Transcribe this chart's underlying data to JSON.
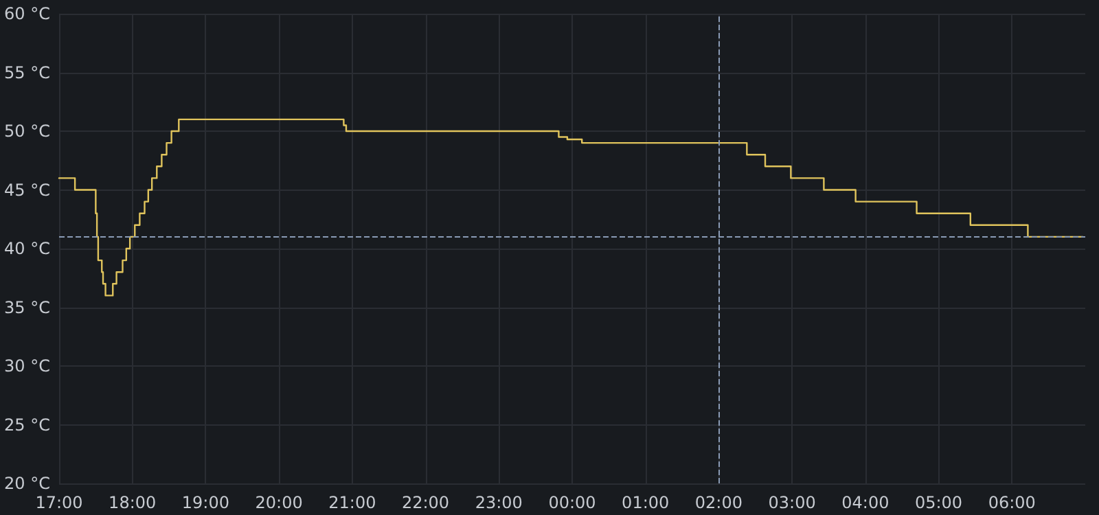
{
  "chart_data": {
    "type": "step",
    "x": [
      "--01-01T17:00",
      "--01-01T17:13",
      "--01-01T17:28",
      "--01-01T17:30",
      "--01-01T17:31",
      "--01-01T17:32",
      "--01-01T17:35",
      "--01-01T17:36",
      "--01-01T17:38",
      "--01-01T17:44",
      "--01-01T17:47",
      "--01-01T17:52",
      "--01-01T17:55",
      "--01-01T17:58",
      "--01-01T18:02",
      "--01-01T18:06",
      "--01-01T18:10",
      "--01-01T18:13",
      "--01-01T18:16",
      "--01-01T18:20",
      "--01-01T18:24",
      "--01-01T18:28",
      "--01-01T18:32",
      "--01-01T18:38",
      "--01-01T20:53",
      "--01-01T20:55",
      "--01-01T23:49",
      "--01-01T23:56",
      "--01-02T00:08",
      "--01-02T02:23",
      "--01-02T02:38",
      "--01-02T02:59",
      "--01-02T03:26",
      "--01-02T03:52",
      "--01-02T04:42",
      "--01-02T05:26",
      "--01-02T06:13",
      "--01-02T06:58"
    ],
    "series": [
      {
        "color": "#e0c45c",
        "values": [
          46,
          45,
          45,
          43,
          41,
          39,
          38,
          37,
          36,
          37,
          38,
          39,
          40,
          41,
          42,
          43,
          44,
          45,
          46,
          47,
          48,
          49,
          50,
          51,
          50.5,
          50,
          49.5,
          49.3,
          49,
          48,
          47,
          46,
          45,
          44,
          43,
          42,
          41,
          41
        ]
      }
    ],
    "xlim": [
      "--01-01T17:00",
      "--01-02T07:00"
    ],
    "xticks": [
      {
        "value": "--01-01T17:00",
        "label": "17:00"
      },
      {
        "value": "--01-01T18:00",
        "label": "18:00"
      },
      {
        "value": "--01-01T19:00",
        "label": "19:00"
      },
      {
        "value": "--01-01T20:00",
        "label": "20:00"
      },
      {
        "value": "--01-01T21:00",
        "label": "21:00"
      },
      {
        "value": "--01-01T22:00",
        "label": "22:00"
      },
      {
        "value": "--01-01T23:00",
        "label": "23:00"
      },
      {
        "value": "--01-02T00:00",
        "label": "00:00"
      },
      {
        "value": "--01-02T01:00",
        "label": "01:00"
      },
      {
        "value": "--01-02T02:00",
        "label": "02:00"
      },
      {
        "value": "--01-02T03:00",
        "label": "03:00"
      },
      {
        "value": "--01-02T04:00",
        "label": "04:00"
      },
      {
        "value": "--01-02T05:00",
        "label": "05:00"
      },
      {
        "value": "--01-02T06:00",
        "label": "06:00"
      }
    ],
    "ylim": [
      20,
      60
    ],
    "yticks": [
      {
        "value": 20,
        "label": "20 °C"
      },
      {
        "value": 25,
        "label": "25 °C"
      },
      {
        "value": 30,
        "label": "30 °C"
      },
      {
        "value": 35,
        "label": "35 °C"
      },
      {
        "value": 40,
        "label": "40 °C"
      },
      {
        "value": 45,
        "label": "45 °C"
      },
      {
        "value": 50,
        "label": "50 °C"
      },
      {
        "value": 55,
        "label": "55 °C"
      },
      {
        "value": 60,
        "label": "60 °C"
      }
    ],
    "grid": true,
    "marker": "none",
    "line_style": "solid",
    "ref_lines": [
      {
        "axis": "x",
        "value": "--01-02T02:00",
        "color": "#8a9bb5",
        "line_style": "dashed"
      },
      {
        "axis": "y",
        "value": 41,
        "color": "#8a9bb5",
        "line_style": "dashed"
      }
    ]
  }
}
